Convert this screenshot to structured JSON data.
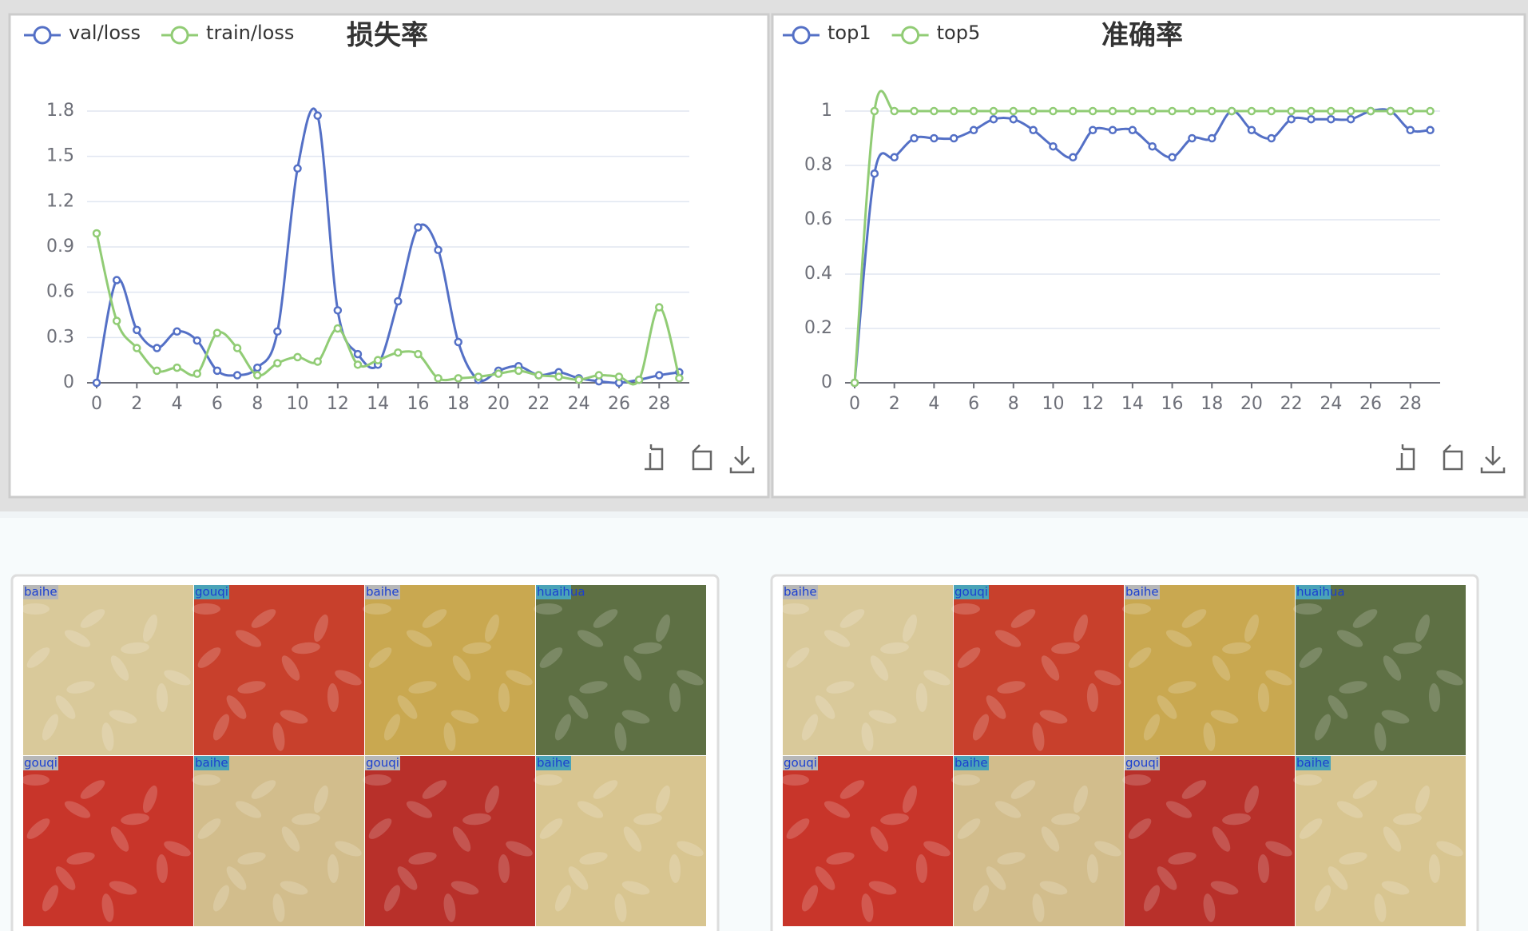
{
  "chart_data": [
    {
      "type": "line",
      "title": "损失率",
      "x": [
        0,
        1,
        2,
        3,
        4,
        5,
        6,
        7,
        8,
        9,
        10,
        11,
        12,
        13,
        14,
        15,
        16,
        17,
        18,
        19,
        20,
        21,
        22,
        23,
        24,
        25,
        26,
        27,
        28,
        29
      ],
      "series": [
        {
          "name": "val/loss",
          "color": "#5470c6",
          "values": [
            0,
            0.68,
            0.35,
            0.23,
            0.34,
            0.28,
            0.08,
            0.05,
            0.1,
            0.34,
            1.42,
            1.77,
            0.48,
            0.19,
            0.12,
            0.54,
            1.03,
            0.88,
            0.27,
            0.02,
            0.08,
            0.11,
            0.05,
            0.07,
            0.03,
            0.01,
            0,
            0.02,
            0.05,
            0.07
          ]
        },
        {
          "name": "train/loss",
          "color": "#91cc75",
          "values": [
            0.99,
            0.41,
            0.23,
            0.08,
            0.1,
            0.06,
            0.33,
            0.23,
            0.05,
            0.13,
            0.17,
            0.14,
            0.36,
            0.12,
            0.15,
            0.2,
            0.19,
            0.03,
            0.03,
            0.04,
            0.06,
            0.08,
            0.05,
            0.04,
            0.02,
            0.05,
            0.04,
            0.02,
            0.5,
            0.03
          ]
        }
      ],
      "xlim": [
        0,
        29.5
      ],
      "xticks": [
        0,
        2,
        4,
        6,
        8,
        10,
        12,
        14,
        16,
        18,
        20,
        22,
        24,
        26,
        28
      ],
      "ylim": [
        0,
        1.8
      ],
      "yticks": [
        0,
        0.3,
        0.6,
        0.9,
        1.2,
        1.5,
        1.8
      ],
      "grid": true
    },
    {
      "type": "line",
      "title": "准确率",
      "x": [
        0,
        1,
        2,
        3,
        4,
        5,
        6,
        7,
        8,
        9,
        10,
        11,
        12,
        13,
        14,
        15,
        16,
        17,
        18,
        19,
        20,
        21,
        22,
        23,
        24,
        25,
        26,
        27,
        28,
        29
      ],
      "series": [
        {
          "name": "top1",
          "color": "#5470c6",
          "values": [
            0,
            0.77,
            0.83,
            0.9,
            0.9,
            0.9,
            0.93,
            0.97,
            0.97,
            0.93,
            0.87,
            0.83,
            0.93,
            0.93,
            0.93,
            0.87,
            0.83,
            0.9,
            0.9,
            1,
            0.93,
            0.9,
            0.97,
            0.97,
            0.97,
            0.97,
            1,
            1,
            0.93,
            0.93
          ]
        },
        {
          "name": "top5",
          "color": "#91cc75",
          "values": [
            0,
            1,
            1,
            1,
            1,
            1,
            1,
            1,
            1,
            1,
            1,
            1,
            1,
            1,
            1,
            1,
            1,
            1,
            1,
            1,
            1,
            1,
            1,
            1,
            1,
            1,
            1,
            1,
            1,
            1
          ]
        }
      ],
      "xlim": [
        0,
        29.5
      ],
      "xticks": [
        0,
        2,
        4,
        6,
        8,
        10,
        12,
        14,
        16,
        18,
        20,
        22,
        24,
        26,
        28
      ],
      "ylim": [
        0,
        1
      ],
      "yticks": [
        0,
        0.2,
        0.4,
        0.6,
        0.8,
        1
      ],
      "grid": true
    }
  ],
  "grids": [
    {
      "tiles": [
        "baihe",
        "gouqi",
        "baihe",
        "huaihua",
        "gouqi",
        "baihe",
        "gouqi",
        "baihe"
      ]
    },
    {
      "tiles": [
        "baihe",
        "gouqi",
        "baihe",
        "huaihua",
        "gouqi",
        "baihe",
        "gouqi",
        "baihe"
      ]
    }
  ]
}
